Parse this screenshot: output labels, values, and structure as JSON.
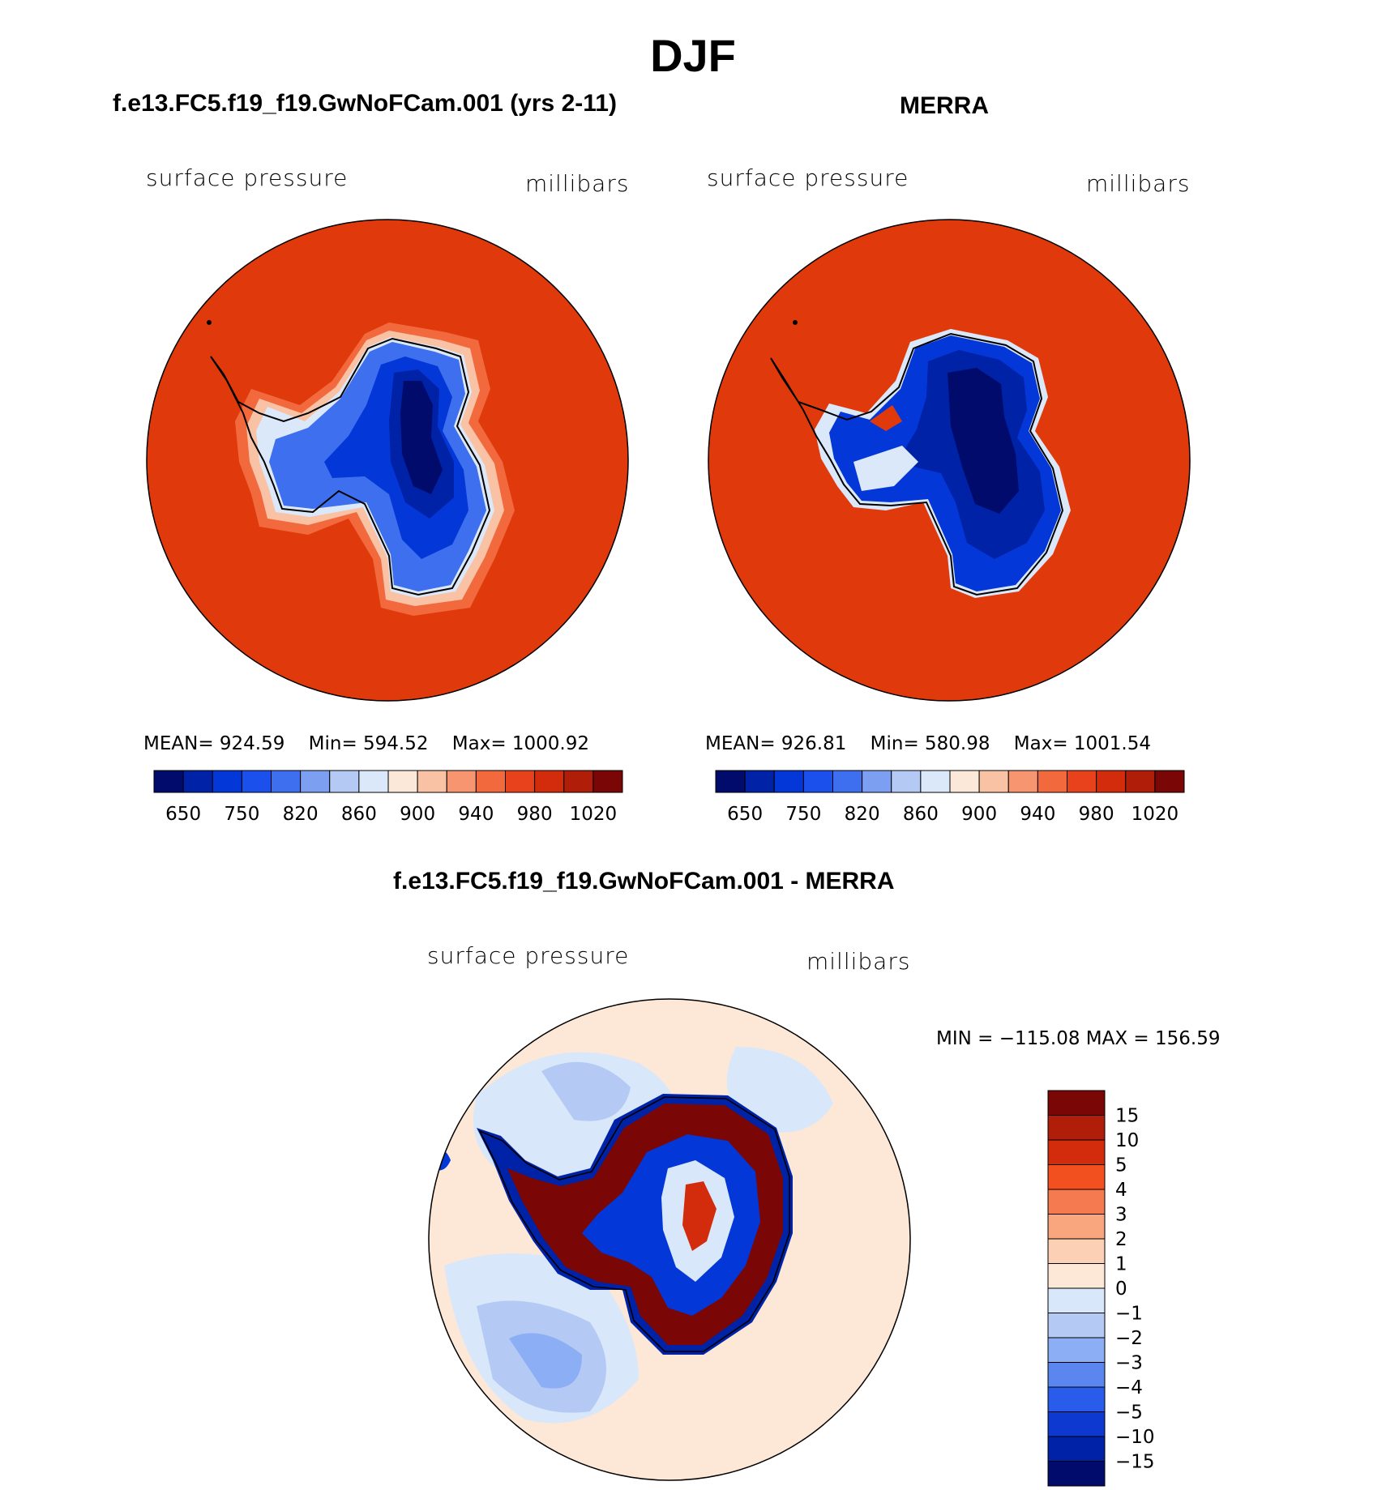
{
  "figure": {
    "season": "DJF",
    "panel_model": {
      "title": "f.e13.FC5.f19_f19.GwNoFCam.001 (yrs 2-11)",
      "variable": "surface pressure",
      "units": "millibars",
      "stats": {
        "mean": "MEAN= 924.59",
        "min": "Min= 594.52",
        "max": "Max= 1000.92"
      }
    },
    "panel_obs": {
      "title": "MERRA",
      "variable": "surface pressure",
      "units": "millibars",
      "stats": {
        "mean": "MEAN= 926.81",
        "min": "Min= 580.98",
        "max": "Max= 1001.54"
      }
    },
    "panel_diff": {
      "title": "f.e13.FC5.f19_f19.GwNoFCam.001 - MERRA",
      "variable": "surface pressure",
      "units": "millibars",
      "minmax": "MIN = −115.08 MAX = 156.59"
    },
    "colorbar_abs": {
      "ticks": [
        "650",
        "750",
        "820",
        "860",
        "900",
        "940",
        "980",
        "1020"
      ],
      "colors": [
        "#000b6c",
        "#0022a7",
        "#0437d7",
        "#1c50ec",
        "#3d6fee",
        "#7c9ff2",
        "#b4caf5",
        "#dbe8fa",
        "#fce8d8",
        "#f9c2a4",
        "#f69570",
        "#f2693d",
        "#e8421c",
        "#d22c0c",
        "#b01d08",
        "#7a0605"
      ]
    },
    "colorbar_diff": {
      "ticks": [
        "15",
        "10",
        "5",
        "4",
        "3",
        "2",
        "1",
        "0",
        "−1",
        "−2",
        "−3",
        "−4",
        "−5",
        "−10",
        "−15"
      ],
      "colors": [
        "#7a0605",
        "#b01d08",
        "#d22c0c",
        "#f2501e",
        "#f67a4f",
        "#f9a57e",
        "#fcd0b4",
        "#fde8d8",
        "#d8e8fa",
        "#b4caf5",
        "#8caef4",
        "#5c86ef",
        "#2a5cec",
        "#0d39d0",
        "#0022a7",
        "#000b6c"
      ]
    },
    "map_colors": {
      "ocean_high": "#e03a0c",
      "ocean_edge": "#c82a0a",
      "coast": "#000000",
      "diff_background": "#fde8d8"
    }
  }
}
